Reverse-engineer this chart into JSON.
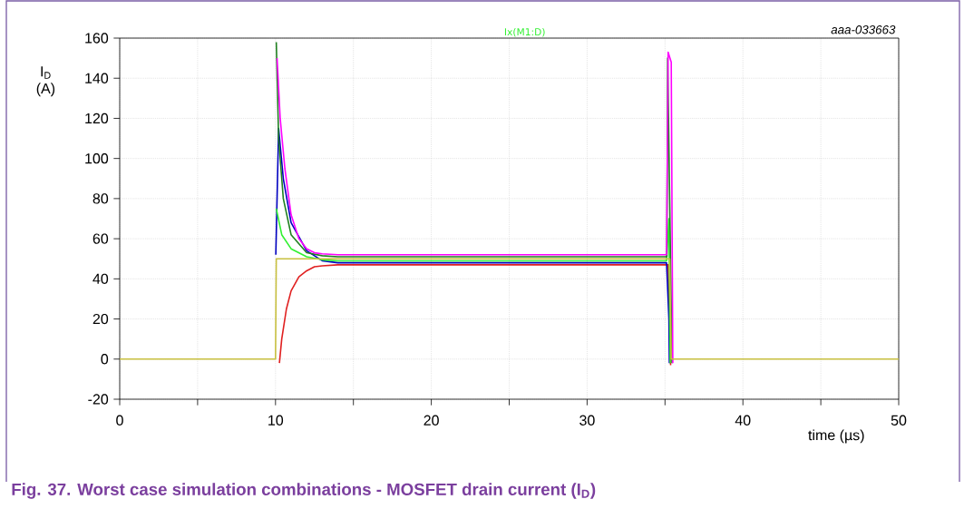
{
  "chart_data": {
    "type": "line",
    "xlabel": "time (µs)",
    "ylabel": "I$_{D}$ (A)",
    "annotations": [
      "aaa-033663",
      "Fig. 37.  Worst case simulation combinations - MOSFET drain current (I$_{D}$)"
    ],
    "xlim": [
      0,
      50
    ],
    "ylim": [
      -20,
      160
    ],
    "xticks": [
      0,
      {
        "value": 5,
        "label": null
      },
      10,
      {
        "value": 15,
        "label": null
      },
      20,
      {
        "value": 25,
        "label": null
      },
      30,
      {
        "value": 35,
        "label": null
      },
      40,
      {
        "value": 45,
        "label": null
      },
      50
    ],
    "yticks": [
      -20,
      0,
      20,
      40,
      60,
      80,
      100,
      120,
      140,
      160
    ],
    "grid": true,
    "line_style": "solid",
    "series": [
      {
        "color": "#e02020",
        "x": [
          10.25,
          10.4,
          10.7,
          11,
          11.5,
          12,
          12.5,
          13,
          14,
          35.2,
          35.36
        ],
        "values": [
          -2,
          10,
          25,
          34,
          41,
          44,
          46,
          46.5,
          47,
          47,
          -3
        ]
      },
      {
        "color": "#0000c0",
        "x": [
          10.02,
          10.2,
          10.5,
          11,
          12,
          13,
          14,
          35.1,
          35.25,
          35.28
        ],
        "values": [
          52,
          115,
          90,
          68,
          54,
          49,
          48,
          48,
          20,
          -2
        ]
      },
      {
        "name": "Ix(M1:D)",
        "color": "#30f030",
        "x": [
          10.05,
          10.4,
          11,
          12,
          13,
          14,
          35.1,
          35.25,
          35.33
        ],
        "values": [
          75,
          62,
          55,
          51,
          49.5,
          49,
          49,
          70,
          -2
        ]
      },
      {
        "color": "#208020",
        "x": [
          10.05,
          10.2,
          10.5,
          11,
          12,
          13,
          14,
          35.12,
          35.17,
          35.45
        ],
        "values": [
          158,
          110,
          80,
          62,
          53,
          51.5,
          51,
          51,
          150,
          -2
        ]
      },
      {
        "color": "#ff00ff",
        "x": [
          10.1,
          10.3,
          10.6,
          11,
          11.5,
          12,
          12.5,
          13,
          14,
          35.1,
          35.2,
          35.4,
          35.5
        ],
        "values": [
          150,
          120,
          95,
          72,
          60,
          55,
          53,
          52.5,
          52,
          52,
          153,
          148,
          -2
        ]
      },
      {
        "color": "#c8c040",
        "x": [
          0,
          10,
          10.05,
          11,
          35.3,
          35.4,
          50
        ],
        "values": [
          0,
          0,
          50,
          50,
          50,
          0,
          0
        ]
      }
    ]
  }
}
